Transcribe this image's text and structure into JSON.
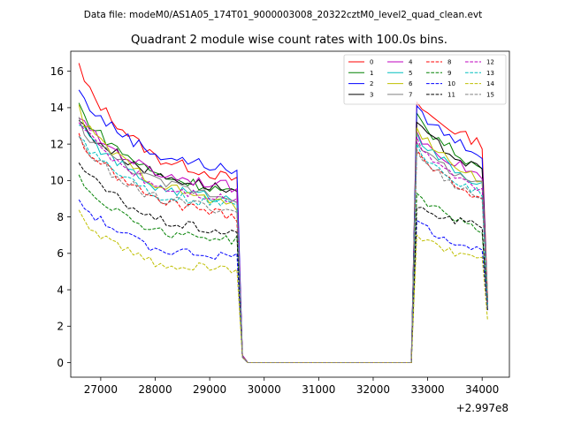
{
  "figure": {
    "suptitle": "Data file: modeM0/AS1A05_174T01_9000003008_20322cztM0_level2_quad_clean.evt"
  },
  "chart_data": {
    "type": "line",
    "title": "Quadrant 2 module wise count rates with 100.0s bins.",
    "xlabel": "",
    "ylabel": "",
    "offset_text": "+2.997e8",
    "xlim": [
      26450,
      34500
    ],
    "ylim": [
      -0.8,
      17.1
    ],
    "xticks": [
      27000,
      28000,
      29000,
      30000,
      31000,
      32000,
      33000,
      34000
    ],
    "xtick_labels": [
      "27000",
      "28000",
      "29000",
      "30000",
      "31000",
      "32000",
      "33000",
      "34000"
    ],
    "yticks": [
      0,
      2,
      4,
      6,
      8,
      10,
      12,
      14,
      16
    ],
    "ytick_labels": [
      "0",
      "2",
      "4",
      "6",
      "8",
      "10",
      "12",
      "14",
      "16"
    ],
    "grid": false,
    "legend_position": "top-right",
    "x_segments": {
      "seg1_start": 26600,
      "seg1_end": 29500,
      "gap_start": 29600,
      "gap_end": 32700,
      "seg2_start": 32800,
      "seg2_end": 34000,
      "end": 34100,
      "step": 100
    },
    "series": [
      {
        "name": "0",
        "color": "#ff0000",
        "dashed": false,
        "start": 16.3,
        "mid": 11.2,
        "end": 10.0,
        "peak2": 14.3,
        "end2": 12.0,
        "final": 3.5
      },
      {
        "name": "1",
        "color": "#008000",
        "dashed": false,
        "start": 14.2,
        "mid": 10.3,
        "end": 9.3,
        "peak2": 13.7,
        "end2": 10.6,
        "final": 3.4
      },
      {
        "name": "2",
        "color": "#0000ff",
        "dashed": false,
        "start": 15.0,
        "mid": 11.4,
        "end": 10.5,
        "peak2": 14.1,
        "end2": 11.4,
        "final": 3.3
      },
      {
        "name": "3",
        "color": "#000000",
        "dashed": false,
        "start": 13.4,
        "mid": 10.3,
        "end": 9.4,
        "peak2": 13.2,
        "end2": 10.5,
        "final": 3.2
      },
      {
        "name": "4",
        "color": "#bf00bf",
        "dashed": false,
        "start": 13.6,
        "mid": 10.4,
        "end": 9.6,
        "peak2": 12.7,
        "end2": 10.2,
        "final": 3.4
      },
      {
        "name": "5",
        "color": "#00bfbf",
        "dashed": false,
        "start": 13.3,
        "mid": 9.6,
        "end": 8.9,
        "peak2": 12.6,
        "end2": 9.7,
        "final": 3.4
      },
      {
        "name": "6",
        "color": "#bfbf00",
        "dashed": false,
        "start": 13.9,
        "mid": 9.8,
        "end": 8.5,
        "peak2": 12.9,
        "end2": 10.0,
        "final": 3.5
      },
      {
        "name": "7",
        "color": "#808080",
        "dashed": false,
        "start": 13.3,
        "mid": 9.9,
        "end": 9.0,
        "peak2": 12.1,
        "end2": 9.7,
        "final": 3.3
      },
      {
        "name": "8",
        "color": "#ff0000",
        "dashed": true,
        "start": 12.5,
        "mid": 8.9,
        "end": 8.0,
        "peak2": 11.7,
        "end2": 9.0,
        "final": 3.3
      },
      {
        "name": "9",
        "color": "#008000",
        "dashed": true,
        "start": 10.3,
        "mid": 7.2,
        "end": 6.7,
        "peak2": 9.3,
        "end2": 7.3,
        "final": 3.0
      },
      {
        "name": "10",
        "color": "#0000ff",
        "dashed": true,
        "start": 9.0,
        "mid": 6.2,
        "end": 5.8,
        "peak2": 7.8,
        "end2": 6.1,
        "final": 2.8
      },
      {
        "name": "11",
        "color": "#000000",
        "dashed": true,
        "start": 11.1,
        "mid": 7.8,
        "end": 7.0,
        "peak2": 8.5,
        "end2": 7.5,
        "final": 2.9
      },
      {
        "name": "12",
        "color": "#bf00bf",
        "dashed": true,
        "start": 13.4,
        "mid": 9.7,
        "end": 8.9,
        "peak2": 12.4,
        "end2": 9.4,
        "final": 3.2
      },
      {
        "name": "13",
        "color": "#00bfbf",
        "dashed": true,
        "start": 12.7,
        "mid": 9.2,
        "end": 8.6,
        "peak2": 12.0,
        "end2": 9.2,
        "final": 3.2
      },
      {
        "name": "14",
        "color": "#bfbf00",
        "dashed": true,
        "start": 8.2,
        "mid": 5.4,
        "end": 5.1,
        "peak2": 7.0,
        "end2": 5.6,
        "final": 2.3
      },
      {
        "name": "15",
        "color": "#808080",
        "dashed": true,
        "start": 12.3,
        "mid": 9.0,
        "end": 8.3,
        "peak2": 11.6,
        "end2": 9.0,
        "final": 3.1
      }
    ]
  }
}
